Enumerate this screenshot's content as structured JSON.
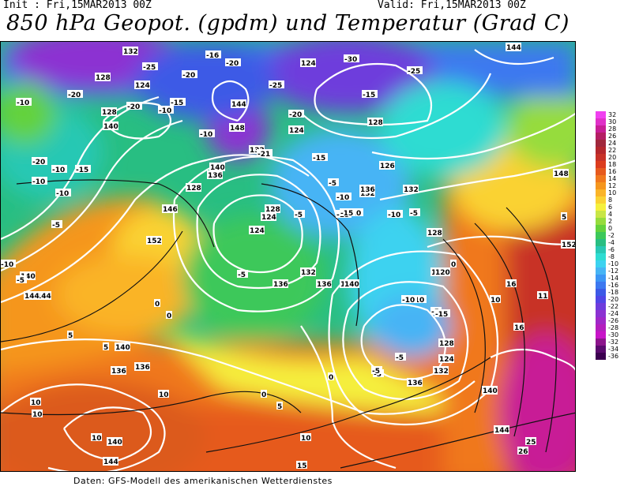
{
  "header": {
    "init": "Init : Fri,15MAR2013 00Z",
    "valid": "Valid: Fri,15MAR2013 00Z",
    "title": "850 hPa Geopot. (gpdm) und Temperatur (Grad C)"
  },
  "footer": "Daten: GFS-Modell des amerikanischen Wetterdienstes",
  "colorbar": {
    "labels": [
      "32",
      "30",
      "28",
      "26",
      "24",
      "22",
      "20",
      "18",
      "16",
      "14",
      "12",
      "10",
      "8",
      "6",
      "4",
      "2",
      "0",
      "-2",
      "-4",
      "-6",
      "-8",
      "-10",
      "-12",
      "-14",
      "-16",
      "-18",
      "-20",
      "-22",
      "-24",
      "-26",
      "-28",
      "-30",
      "-32",
      "-34",
      "-36"
    ],
    "colors": [
      "#f040f0",
      "#e030c8",
      "#c81e96",
      "#b41e64",
      "#a0283c",
      "#b4282d",
      "#c83228",
      "#dc3c1e",
      "#e65a1e",
      "#f0781e",
      "#f5961e",
      "#fab428",
      "#fad232",
      "#f5f03c",
      "#c8e646",
      "#96dc3c",
      "#64d23c",
      "#3cc85a",
      "#28be82",
      "#28c8b4",
      "#2ddcd2",
      "#3cd2f0",
      "#46b4f5",
      "#3c96f5",
      "#3c78f0",
      "#3c5ae6",
      "#5046e6",
      "#6e3cdc",
      "#8c32d2",
      "#a028c8",
      "#b41ebe",
      "#c814c8",
      "#8c148c",
      "#5a0a6e",
      "#3c0050"
    ]
  },
  "map": {
    "geopotential_labels": [
      "132",
      "128",
      "124",
      "128",
      "124",
      "120",
      "124",
      "124",
      "128",
      "144",
      "148",
      "132",
      "140",
      "136",
      "136",
      "144",
      "140",
      "132",
      "128",
      "124",
      "132",
      "136",
      "140",
      "136",
      "128",
      "120",
      "124",
      "128",
      "136",
      "140",
      "144",
      "148",
      "152",
      "146",
      "152",
      "140",
      "144",
      "140",
      "136",
      "144",
      "140",
      "144",
      "136",
      "132",
      "126",
      "132",
      "128",
      "124",
      "140",
      "144",
      "136"
    ],
    "temperature_labels": [
      "-25",
      "-20",
      "-16",
      "-20",
      "-20",
      "-25",
      "-30",
      "-25",
      "-10",
      "-15",
      "-20",
      "-10",
      "-15",
      "-20",
      "-21",
      "-10",
      "-15",
      "-20",
      "-10",
      "-10",
      "-10",
      "-15",
      "-5",
      "-5",
      "-15",
      "-10",
      "-15",
      "-10",
      "-5",
      "-5",
      "-5",
      "0",
      "-5",
      "-10",
      "-5",
      "0",
      "5",
      "5",
      "0",
      "10",
      "10",
      "10",
      "10",
      "-5",
      "-5",
      "-10",
      "-5",
      "0",
      "0",
      "5",
      "10",
      "15",
      "25",
      "26",
      "10",
      "16",
      "16",
      "11",
      "5",
      "-15",
      "-10",
      "-10",
      "-15",
      "-5"
    ]
  }
}
